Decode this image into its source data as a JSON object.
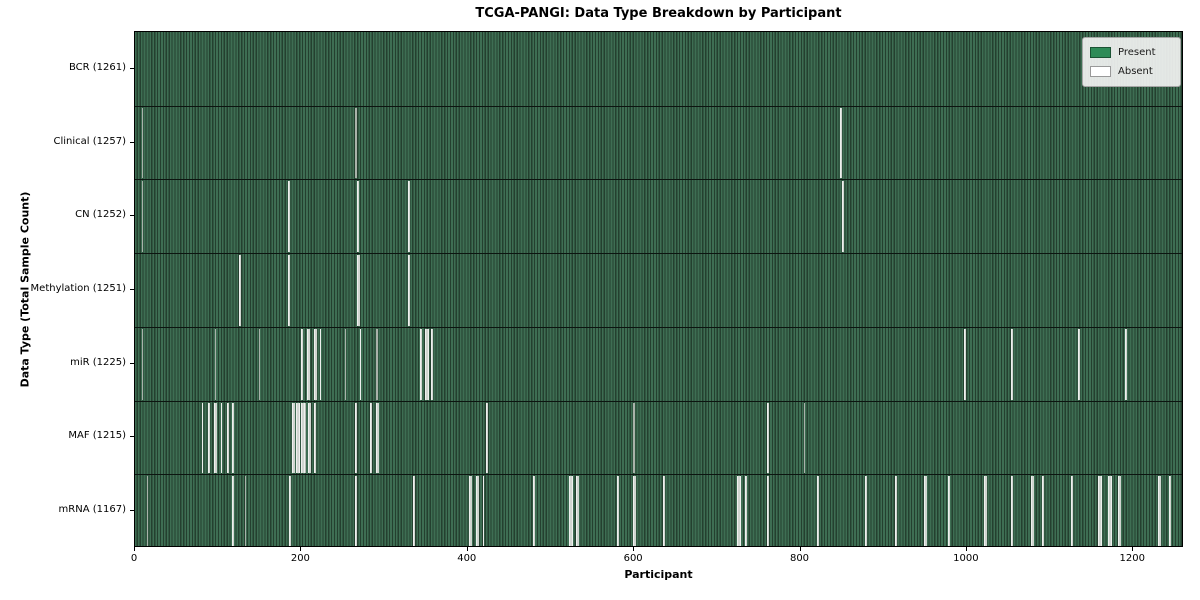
{
  "chart_data": {
    "type": "heatmap",
    "title": "TCGA-PANGI: Data Type Breakdown by Participant",
    "xlabel": "Participant",
    "ylabel": "Data Type (Total Sample Count)",
    "x_ticks": [
      0,
      200,
      400,
      600,
      800,
      1000,
      1200
    ],
    "xlim": [
      0,
      1261
    ],
    "total_participants": 1261,
    "grid": false,
    "legend_position": "upper right",
    "legend": [
      {
        "label": "Present",
        "color": "#2e8b57"
      },
      {
        "label": "Absent",
        "color": "#ffffff"
      }
    ],
    "colors": {
      "present_light": "#3e6e53",
      "present_dark": "#24402f",
      "absent_light": "#eef0ee",
      "frame": "#000000"
    },
    "rows": [
      {
        "label": "BCR (1261)",
        "data_type": "BCR",
        "present_count": 1261,
        "absent_count": 0,
        "absent_runs": []
      },
      {
        "label": "Clinical (1257)",
        "data_type": "Clinical",
        "present_count": 1257,
        "absent_count": 4,
        "absent_runs": [
          [
            8,
            1
          ],
          [
            265,
            1
          ],
          [
            848,
            2
          ]
        ]
      },
      {
        "label": "CN (1252)",
        "data_type": "CN",
        "present_count": 1252,
        "absent_count": 9,
        "absent_runs": [
          [
            8,
            1
          ],
          [
            184,
            2
          ],
          [
            267,
            2
          ],
          [
            328,
            2
          ],
          [
            850,
            2
          ]
        ]
      },
      {
        "label": "Methylation (1251)",
        "data_type": "Methylation",
        "present_count": 1251,
        "absent_count": 10,
        "absent_runs": [
          [
            125,
            2
          ],
          [
            184,
            2
          ],
          [
            267,
            3
          ],
          [
            328,
            3
          ]
        ]
      },
      {
        "label": "miR (1225)",
        "data_type": "miR",
        "present_count": 1225,
        "absent_count": 36,
        "absent_runs": [
          [
            8,
            1
          ],
          [
            96,
            1
          ],
          [
            149,
            1
          ],
          [
            200,
            2
          ],
          [
            207,
            3
          ],
          [
            215,
            4
          ],
          [
            222,
            2
          ],
          [
            252,
            1
          ],
          [
            270,
            2
          ],
          [
            290,
            1
          ],
          [
            342,
            3
          ],
          [
            349,
            4
          ],
          [
            356,
            2
          ],
          [
            997,
            2
          ],
          [
            1053,
            2
          ],
          [
            1134,
            2
          ],
          [
            1190,
            3
          ]
        ]
      },
      {
        "label": "MAF (1215)",
        "data_type": "MAF",
        "present_count": 1215,
        "absent_count": 46,
        "absent_runs": [
          [
            80,
            2
          ],
          [
            88,
            2
          ],
          [
            95,
            3
          ],
          [
            103,
            2
          ],
          [
            110,
            3
          ],
          [
            117,
            2
          ],
          [
            189,
            3
          ],
          [
            194,
            4
          ],
          [
            200,
            5
          ],
          [
            208,
            4
          ],
          [
            215,
            3
          ],
          [
            265,
            2
          ],
          [
            283,
            2
          ],
          [
            290,
            3
          ],
          [
            422,
            2
          ],
          [
            599,
            1
          ],
          [
            760,
            2
          ],
          [
            804,
            1
          ]
        ]
      },
      {
        "label": "mRNA (1167)",
        "data_type": "mRNA",
        "present_count": 1167,
        "absent_count": 94,
        "absent_runs": [
          [
            14,
            1
          ],
          [
            117,
            2
          ],
          [
            132,
            1
          ],
          [
            185,
            2
          ],
          [
            265,
            2
          ],
          [
            334,
            2
          ],
          [
            402,
            3
          ],
          [
            410,
            4
          ],
          [
            418,
            2
          ],
          [
            478,
            3
          ],
          [
            522,
            5
          ],
          [
            530,
            4
          ],
          [
            579,
            3
          ],
          [
            599,
            3
          ],
          [
            635,
            2
          ],
          [
            724,
            4
          ],
          [
            733,
            3
          ],
          [
            760,
            2
          ],
          [
            820,
            2
          ],
          [
            877,
            3
          ],
          [
            913,
            3
          ],
          [
            949,
            3
          ],
          [
            977,
            3
          ],
          [
            1021,
            3
          ],
          [
            1053,
            3
          ],
          [
            1077,
            4
          ],
          [
            1090,
            3
          ],
          [
            1125,
            3
          ],
          [
            1158,
            4
          ],
          [
            1170,
            4
          ],
          [
            1182,
            3
          ],
          [
            1230,
            3
          ],
          [
            1243,
            2
          ]
        ]
      }
    ]
  }
}
